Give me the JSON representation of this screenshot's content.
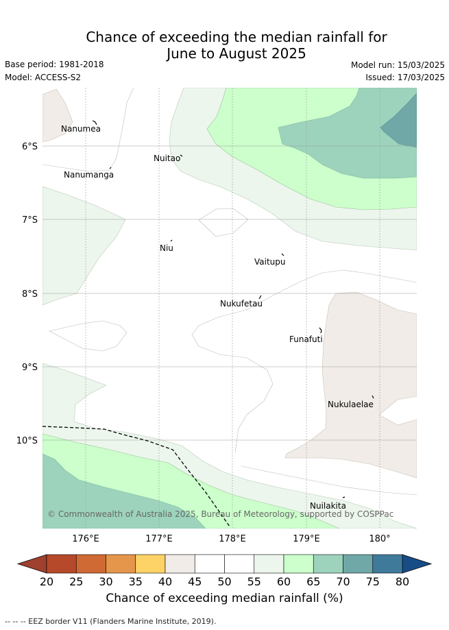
{
  "title": {
    "line1": "Chance of exceeding the median rainfall for",
    "line2": "June to August 2025"
  },
  "meta": {
    "base_period": "Base period: 1981-2018",
    "model": "Model: ACCESS-S2",
    "model_run": "Model run: 15/03/2025",
    "issued": "Issued: 17/03/2025"
  },
  "map": {
    "lon_ticks": [
      "176°E",
      "177°E",
      "178°E",
      "179°E",
      "180°"
    ],
    "lat_ticks": [
      "6°S",
      "7°S",
      "8°S",
      "9°S",
      "10°S"
    ],
    "places": [
      {
        "name": "Nanumea"
      },
      {
        "name": "Nuitao"
      },
      {
        "name": "Nanumanga"
      },
      {
        "name": "Niu"
      },
      {
        "name": "Vaitupu"
      },
      {
        "name": "Nukufetau"
      },
      {
        "name": "Funafuti"
      },
      {
        "name": "Nukulaelae"
      },
      {
        "name": "Nuilakita"
      }
    ],
    "copyright": "© Commonwealth of Australia 2025, Bureau of Meteorology, supported by COSPPac"
  },
  "colorbar": {
    "labels": [
      "20",
      "25",
      "30",
      "35",
      "40",
      "45",
      "50",
      "55",
      "60",
      "65",
      "70",
      "75",
      "80"
    ],
    "colors": [
      "#b5492a",
      "#d06a35",
      "#e5964a",
      "#fdd266",
      "#f1ece7",
      "#ffffff",
      "#ffffff",
      "#ecf6ec",
      "#ccffcc",
      "#9dd3bc",
      "#70a8a8",
      "#3f7a9b"
    ],
    "under_color": "#a0402e",
    "over_color": "#184c87",
    "title": "Chance of exceeding median rainfall (%)"
  },
  "footer": "-- -- -- EEZ border V11 (Flanders Marine Institute, 2019)."
}
